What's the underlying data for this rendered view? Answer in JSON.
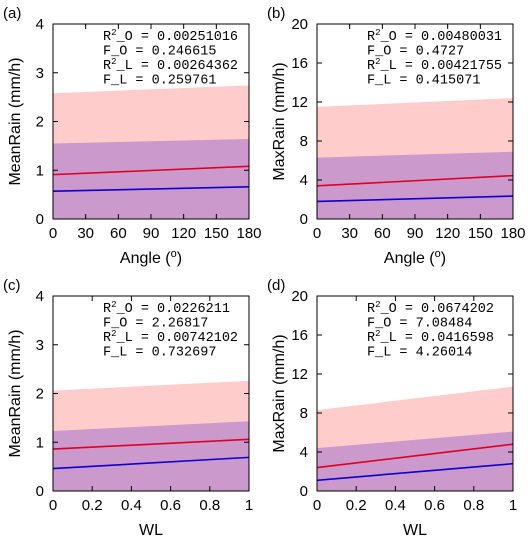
{
  "chart_data": [
    {
      "type": "line",
      "panel_label": "(a)",
      "xlabel": "Angle (",
      "xlabel_sup": "o",
      "xlabel_suffix": ")",
      "ylabel": "MeanRain (mm/h)",
      "xlim": [
        0,
        180
      ],
      "ylim": [
        0,
        4
      ],
      "xticks": [
        0,
        30,
        60,
        90,
        120,
        150,
        180
      ],
      "yticks": [
        0,
        1,
        2,
        3,
        4
      ],
      "band_outer": {
        "color": "#ffcccc",
        "lower": [
          0,
          0
        ],
        "upper": [
          2.58,
          2.74
        ]
      },
      "band_inner": {
        "color": "#cc99cc",
        "lower": [
          0,
          0
        ],
        "upper": [
          1.55,
          1.64
        ]
      },
      "series": [
        {
          "color": "#dd0022",
          "x": [
            0,
            180
          ],
          "y": [
            0.91,
            1.08
          ]
        },
        {
          "color": "#1100cc",
          "x": [
            0,
            180
          ],
          "y": [
            0.57,
            0.66
          ]
        }
      ],
      "stats": [
        {
          "key": "R",
          "sup": "2",
          "rest": "_O = 0.00251016"
        },
        {
          "key": "F_O = 0.246615",
          "sup": "",
          "rest": ""
        },
        {
          "key": "R",
          "sup": "2",
          "rest": "_L = 0.00264362"
        },
        {
          "key": "F_L = 0.259761",
          "sup": "",
          "rest": ""
        }
      ]
    },
    {
      "type": "line",
      "panel_label": "(b)",
      "xlabel": "Angle (",
      "xlabel_sup": "o",
      "xlabel_suffix": ")",
      "ylabel": "MaxRain (mm/h)",
      "xlim": [
        0,
        180
      ],
      "ylim": [
        0,
        20
      ],
      "xticks": [
        0,
        30,
        60,
        90,
        120,
        150,
        180
      ],
      "yticks": [
        0,
        4,
        8,
        12,
        16,
        20
      ],
      "band_outer": {
        "color": "#ffcccc",
        "lower": [
          0,
          0
        ],
        "upper": [
          11.5,
          12.4
        ]
      },
      "band_inner": {
        "color": "#cc99cc",
        "lower": [
          0,
          0
        ],
        "upper": [
          6.3,
          6.9
        ]
      },
      "series": [
        {
          "color": "#dd0022",
          "x": [
            0,
            180
          ],
          "y": [
            3.4,
            4.45
          ]
        },
        {
          "color": "#1100cc",
          "x": [
            0,
            180
          ],
          "y": [
            1.8,
            2.35
          ]
        }
      ],
      "stats": [
        {
          "key": "R",
          "sup": "2",
          "rest": "_O = 0.00480031"
        },
        {
          "key": "F_O = 0.4727",
          "sup": "",
          "rest": ""
        },
        {
          "key": "R",
          "sup": "2",
          "rest": "_L = 0.00421755"
        },
        {
          "key": "F_L = 0.415071",
          "sup": "",
          "rest": ""
        }
      ]
    },
    {
      "type": "line",
      "panel_label": "(c)",
      "xlabel": "WL",
      "xlabel_sup": "",
      "xlabel_suffix": "",
      "ylabel": "MeanRain (mm/h)",
      "xlim": [
        0,
        1
      ],
      "ylim": [
        0,
        4
      ],
      "xticks": [
        0,
        0.2,
        0.4,
        0.6,
        0.8,
        1
      ],
      "yticks": [
        0,
        1,
        2,
        3,
        4
      ],
      "band_outer": {
        "color": "#ffcccc",
        "lower": [
          0,
          0
        ],
        "upper": [
          2.06,
          2.26
        ]
      },
      "band_inner": {
        "color": "#cc99cc",
        "lower": [
          0,
          0
        ],
        "upper": [
          1.23,
          1.43
        ]
      },
      "series": [
        {
          "color": "#dd0022",
          "x": [
            0,
            1
          ],
          "y": [
            0.86,
            1.06
          ]
        },
        {
          "color": "#1100cc",
          "x": [
            0,
            1
          ],
          "y": [
            0.46,
            0.69
          ]
        }
      ],
      "stats": [
        {
          "key": "R",
          "sup": "2",
          "rest": "_O = 0.0226211"
        },
        {
          "key": "F_O = 2.26817",
          "sup": "",
          "rest": ""
        },
        {
          "key": "R",
          "sup": "2",
          "rest": "_L = 0.00742102"
        },
        {
          "key": "F_L = 0.732697",
          "sup": "",
          "rest": ""
        }
      ]
    },
    {
      "type": "line",
      "panel_label": "(d)",
      "xlabel": "WL",
      "xlabel_sup": "",
      "xlabel_suffix": "",
      "ylabel": "MaxRain (mm/h)",
      "xlim": [
        0,
        1
      ],
      "ylim": [
        0,
        20
      ],
      "xticks": [
        0,
        0.2,
        0.4,
        0.6,
        0.8,
        1
      ],
      "yticks": [
        0,
        4,
        8,
        12,
        16,
        20
      ],
      "band_outer": {
        "color": "#ffcccc",
        "lower": [
          0,
          0
        ],
        "upper": [
          8.3,
          10.7
        ]
      },
      "band_inner": {
        "color": "#cc99cc",
        "lower": [
          0,
          0
        ],
        "upper": [
          4.4,
          6.1
        ]
      },
      "series": [
        {
          "color": "#dd0022",
          "x": [
            0,
            1
          ],
          "y": [
            2.4,
            4.8
          ]
        },
        {
          "color": "#1100cc",
          "x": [
            0,
            1
          ],
          "y": [
            1.1,
            2.8
          ]
        }
      ],
      "stats": [
        {
          "key": "R",
          "sup": "2",
          "rest": "_O = 0.0674202"
        },
        {
          "key": "F_O = 7.08484",
          "sup": "",
          "rest": ""
        },
        {
          "key": "R",
          "sup": "2",
          "rest": "_L = 0.0416598"
        },
        {
          "key": "F_L = 4.26014",
          "sup": "",
          "rest": ""
        }
      ]
    }
  ]
}
